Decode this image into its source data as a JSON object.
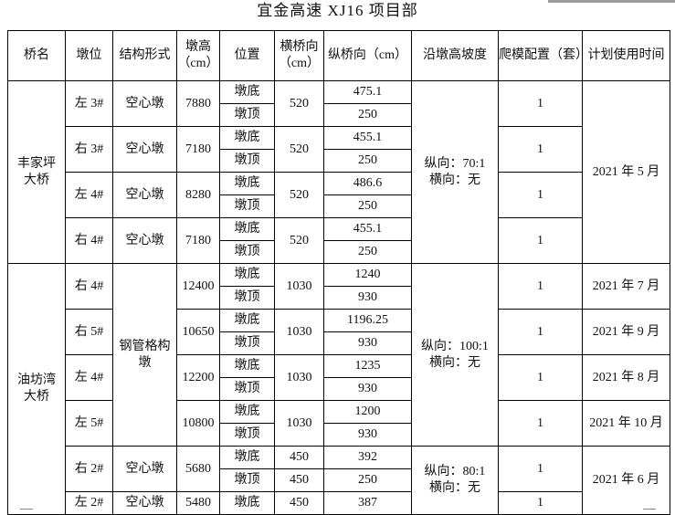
{
  "title": "宜金高速 XJ16 项目部",
  "headers": [
    "桥名",
    "墩位",
    "结构形式",
    "墩高（cm）",
    "位置",
    "横桥向（cm）",
    "纵桥向（cm）",
    "沿墩高坡度",
    "爬模配置（套）",
    "计划使用时间"
  ],
  "bridges": [
    {
      "name": "丰家坪大桥",
      "slope": "纵向：70:1 横向：无",
      "time": "2021 年 5 月",
      "piers": [
        {
          "pos": "左 3#",
          "struct": "空心墩",
          "height": "7880",
          "trans": "520",
          "bottom": "475.1",
          "top": "250",
          "climb": "1"
        },
        {
          "pos": "右 3#",
          "struct": "空心墩",
          "height": "7180",
          "trans": "520",
          "bottom": "455.1",
          "top": "250",
          "climb": "1"
        },
        {
          "pos": "左 4#",
          "struct": "空心墩",
          "height": "8280",
          "trans": "520",
          "bottom": "486.6",
          "top": "250",
          "climb": "1"
        },
        {
          "pos": "右 4#",
          "struct": "空心墩",
          "height": "7180",
          "trans": "520",
          "bottom": "455.1",
          "top": "250",
          "climb": "1"
        }
      ]
    },
    {
      "name": "油坊湾大桥",
      "struct": "钢管格构墩",
      "slope": "纵向：100:1 横向：无",
      "slope2": "纵向：80:1 横向：无",
      "time2": "2021 年 6 月",
      "piers": [
        {
          "pos": "右 4#",
          "height": "12400",
          "trans": "1030",
          "bottom": "1240",
          "top": "930",
          "climb": "1",
          "time": "2021 年 7 月"
        },
        {
          "pos": "右 5#",
          "height": "10650",
          "trans": "1030",
          "bottom": "1196.25",
          "top": "930",
          "climb": "1",
          "time": "2021 年 9 月"
        },
        {
          "pos": "左 4#",
          "height": "12200",
          "trans": "1030",
          "bottom": "1235",
          "top": "930",
          "climb": "1",
          "time": "2021 年 8 月"
        },
        {
          "pos": "左 5#",
          "height": "10800",
          "trans": "1030",
          "bottom": "1200",
          "top": "930",
          "climb": "1",
          "time": "2021 年 10 月"
        },
        {
          "pos": "右 2#",
          "struct": "空心墩",
          "height": "5680",
          "trans": "450",
          "bottom": "392",
          "top": "250",
          "trans_top": "450",
          "climb": "1"
        },
        {
          "pos": "左 2#",
          "struct": "空心墩",
          "height": "5480",
          "trans": "450",
          "bottom": "387",
          "climb": "1"
        }
      ]
    }
  ],
  "labels": {
    "bottom": "墩底",
    "top": "墩顶"
  }
}
